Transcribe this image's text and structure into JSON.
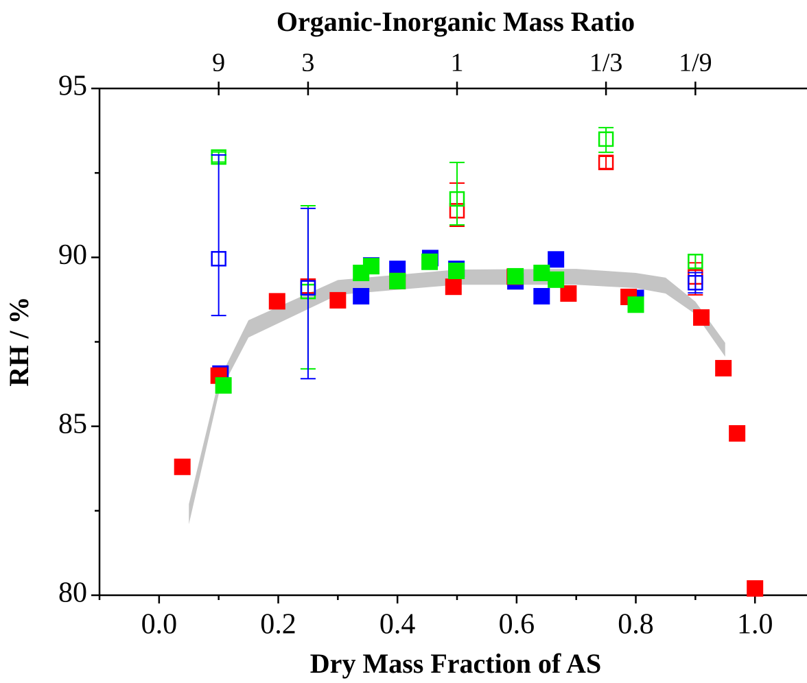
{
  "chart_data": {
    "type": "scatter",
    "title": "Organic-Inorganic Mass Ratio",
    "x_label": "Dry Mass Fraction of AS",
    "y_label": "RH / %",
    "xlim": [
      -0.1,
      1.085
    ],
    "ylim": [
      80,
      95
    ],
    "xticks": [
      {
        "value": 0,
        "label": "0.0"
      },
      0.2,
      0.4,
      0.6,
      0.8,
      {
        "value": 1,
        "label": "1.0"
      }
    ],
    "xminorticks": [
      -0.1,
      0.1,
      0.3,
      0.5,
      0.7,
      0.9
    ],
    "yticks": [
      80,
      85,
      90,
      95
    ],
    "yminorticks": [
      82.5,
      87.5,
      92.5
    ],
    "top_ticks": [
      {
        "value": 0.1,
        "label": "9"
      },
      {
        "value": 0.25,
        "label": "3"
      },
      {
        "value": 0.5,
        "label": "1"
      },
      {
        "value": 0.75,
        "label": "1/3"
      },
      {
        "value": 0.9,
        "label": "1/9"
      }
    ],
    "band": {
      "color": "#c4c4c4",
      "x": [
        0.05,
        0.1,
        0.15,
        0.3,
        0.5,
        0.7,
        0.8,
        0.85,
        0.9,
        0.95
      ],
      "upper": [
        82.7,
        86.35,
        88.14,
        89.33,
        89.64,
        89.66,
        89.54,
        89.4,
        88.69,
        87.47
      ],
      "lower": [
        82.1,
        85.95,
        87.63,
        88.89,
        89.19,
        89.19,
        89.09,
        88.93,
        88.32,
        87.06
      ]
    },
    "series": [
      {
        "color": "#ff0000",
        "marker": "open",
        "x": [
          0.25,
          0.5,
          0.75,
          0.9
        ],
        "values": [
          89.15,
          91.38,
          92.81,
          89.42
        ],
        "err_minus": [
          0.2,
          0.46,
          0.18,
          0.53
        ],
        "err_plus": [
          0.2,
          0.82,
          0.18,
          0.42
        ]
      },
      {
        "color": "#00ee00",
        "marker": "open",
        "x": [
          0.1,
          0.25,
          0.5,
          0.75,
          0.9
        ],
        "values": [
          92.97,
          88.99,
          91.73,
          93.5,
          89.88
        ],
        "err_minus": [
          0.15,
          2.29,
          0.77,
          0.39,
          0.2
        ],
        "err_plus": [
          0.15,
          2.54,
          1.08,
          0.34,
          0.2
        ]
      },
      {
        "color": "#0000ff",
        "marker": "open",
        "x": [
          0.1,
          0.25,
          0.9
        ],
        "values": [
          89.96,
          89.1,
          89.25
        ],
        "err_minus": [
          1.68,
          2.69,
          0.3
        ],
        "err_plus": [
          3.07,
          2.35,
          0.3
        ]
      },
      {
        "color": "#0000ff",
        "marker": "filled",
        "x": [
          0.103,
          0.339,
          0.356,
          0.4,
          0.455,
          0.499,
          0.598,
          0.642,
          0.666,
          0.8
        ],
        "values": [
          86.56,
          88.85,
          89.76,
          89.66,
          89.98,
          89.66,
          89.29,
          88.85,
          89.94,
          88.8
        ]
      },
      {
        "color": "#ff0000",
        "marker": "filled",
        "x": [
          0.039,
          0.1,
          0.198,
          0.3,
          0.4,
          0.494,
          0.597,
          0.687,
          0.788,
          0.91,
          0.947,
          0.97,
          1.0
        ],
        "values": [
          83.8,
          86.5,
          88.7,
          88.73,
          89.3,
          89.13,
          89.43,
          88.93,
          88.83,
          88.22,
          86.72,
          84.79,
          80.2
        ]
      },
      {
        "color": "#00ee00",
        "marker": "filled",
        "x": [
          0.108,
          0.339,
          0.356,
          0.4,
          0.454,
          0.499,
          0.598,
          0.642,
          0.666,
          0.8
        ],
        "values": [
          86.21,
          89.54,
          89.74,
          89.3,
          89.87,
          89.6,
          89.44,
          89.54,
          89.34,
          88.6
        ]
      }
    ]
  }
}
